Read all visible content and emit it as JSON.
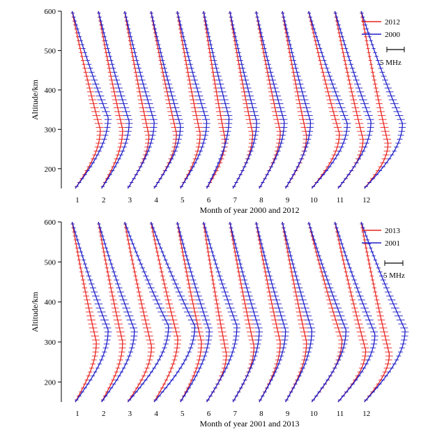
{
  "colors": {
    "red": "#e8231f",
    "blue": "#1d1dc8",
    "axis": "#000000"
  },
  "chart_data": [
    {
      "type": "line",
      "description_units": "x: month index (profile anchor), profile offset in MHz; y: altitude in km",
      "xlabel": "Month of year 2000 and 2012",
      "ylabel": "Altitude/km",
      "yticks": [
        200,
        300,
        400,
        500,
        600
      ],
      "ylim": [
        150,
        600
      ],
      "months": [
        "1",
        "2",
        "3",
        "4",
        "5",
        "6",
        "7",
        "8",
        "9",
        "10",
        "11",
        "12"
      ],
      "scalebar": {
        "label": "5 MHz",
        "value_mhz": 5
      },
      "series": [
        {
          "name": "2012",
          "color": "red",
          "hmF2_km": [
            300,
            300,
            285,
            290,
            290,
            275,
            290,
            295,
            285,
            290,
            275,
            265
          ],
          "peak_offset": [
            0.95,
            0.8,
            0.8,
            0.85,
            0.75,
            0.7,
            0.75,
            0.8,
            0.8,
            1.05,
            0.95,
            0.9
          ]
        },
        {
          "name": "2000",
          "color": "blue",
          "hmF2_km": [
            330,
            320,
            320,
            310,
            320,
            330,
            320,
            320,
            320,
            315,
            320,
            315
          ],
          "peak_offset": [
            1.25,
            1.05,
            1.0,
            1.0,
            1.0,
            0.85,
            0.9,
            0.95,
            0.95,
            1.35,
            1.25,
            1.45
          ]
        }
      ]
    },
    {
      "type": "line",
      "description_units": "x: month index (profile anchor), profile offset in MHz; y: altitude in km",
      "xlabel": "Month of year 2001 and 2013",
      "ylabel": "Altitude/km",
      "yticks": [
        200,
        300,
        400,
        500,
        600
      ],
      "ylim": [
        150,
        600
      ],
      "months": [
        "1",
        "2",
        "3",
        "4",
        "5",
        "6",
        "7",
        "8",
        "9",
        "10",
        "11",
        "12"
      ],
      "scalebar": {
        "label": "5 MHz",
        "value_mhz": 5
      },
      "series": [
        {
          "name": "2013",
          "color": "red",
          "hmF2_km": [
            300,
            300,
            290,
            310,
            300,
            270,
            290,
            300,
            300,
            305,
            280,
            270
          ],
          "peak_offset": [
            0.8,
            0.8,
            0.9,
            0.9,
            0.8,
            0.75,
            0.8,
            0.8,
            0.8,
            1.15,
            1.05,
            0.95
          ]
        },
        {
          "name": "2001",
          "color": "blue",
          "hmF2_km": [
            330,
            330,
            340,
            340,
            330,
            340,
            330,
            330,
            330,
            330,
            320,
            330
          ],
          "peak_offset": [
            1.25,
            1.25,
            1.55,
            1.55,
            1.1,
            1.15,
            1.0,
            1.0,
            1.0,
            1.3,
            1.4,
            1.55
          ]
        }
      ]
    }
  ]
}
